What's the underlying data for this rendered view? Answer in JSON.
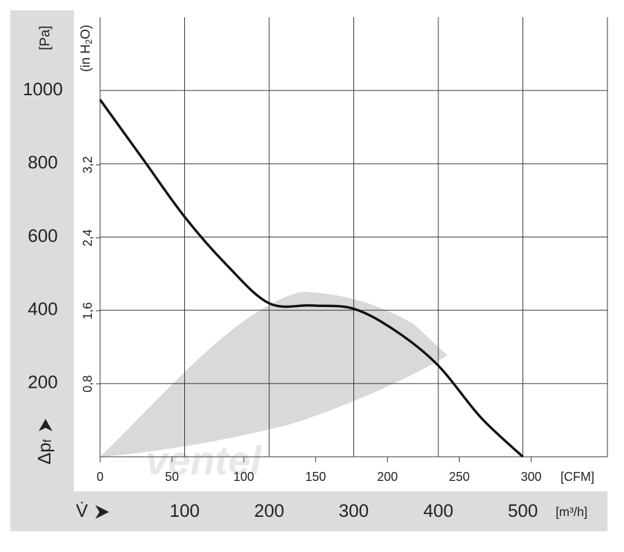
{
  "chart_data": {
    "type": "line",
    "x_symbol": "V̇",
    "x_label": "[m³/h]",
    "x2_label": "[CFM]",
    "y_symbol": "Δp",
    "y_symbol_subscript": "f",
    "y_label": "[Pa]",
    "y2_label": [
      "(in H",
      "2",
      "O)"
    ],
    "watermark": "ventel",
    "x": [
      0,
      50,
      100,
      150,
      200,
      250,
      300,
      350,
      400,
      450,
      500
    ],
    "series": [
      {
        "color": "#111111",
        "values": [
          975,
          815,
          655,
          523,
          419,
          413,
          404,
          343,
          249,
          108,
          0
        ]
      }
    ],
    "xlim": [
      0,
      600
    ],
    "xticks": [
      100,
      200,
      300,
      400,
      500
    ],
    "x2lim": [
      0,
      353.1
    ],
    "x2ticks": [
      0,
      50,
      100,
      150,
      200,
      250,
      300
    ],
    "ylim": [
      0,
      1200
    ],
    "yticks": [
      200,
      400,
      600,
      800,
      1000
    ],
    "y2lim": [
      0,
      4.818
    ],
    "y2ticks": [
      {
        "value": 0.8,
        "label": "0,8"
      },
      {
        "value": 1.6,
        "label": "1,6"
      },
      {
        "value": 2.4,
        "label": "2,4"
      },
      {
        "value": 3.2,
        "label": "3,2"
      }
    ],
    "grid": true
  }
}
